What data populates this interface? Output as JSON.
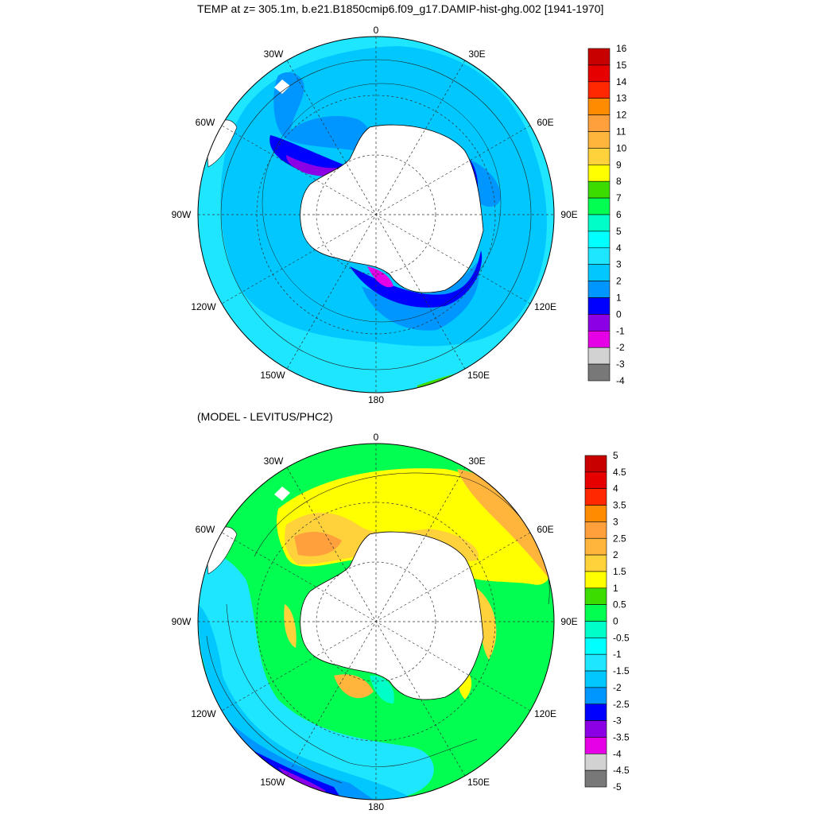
{
  "top_panel": {
    "title": "TEMP at z= 305.1m, b.e21.B1850cmip6.f09_g17.DAMIP-hist-ghg.002 [1941-1970]",
    "lon_labels": [
      "0",
      "30E",
      "60E",
      "90E",
      "120E",
      "150E",
      "180",
      "150W",
      "120W",
      "90W",
      "60W",
      "30W"
    ],
    "colorbar": {
      "labels": [
        "16",
        "15",
        "14",
        "13",
        "12",
        "11",
        "10",
        "9",
        "8",
        "7",
        "6",
        "5",
        "4",
        "3",
        "2",
        "1",
        "0",
        "-1",
        "-2",
        "-3",
        "-4"
      ],
      "colors": [
        "#c80000",
        "#e60000",
        "#ff2800",
        "#ff8c00",
        "#ffa03c",
        "#ffb43c",
        "#ffd23c",
        "#ffff00",
        "#3cdc00",
        "#00ff50",
        "#00ffc8",
        "#00ffff",
        "#1ee6ff",
        "#00c8ff",
        "#0096ff",
        "#0000ff",
        "#8c00e6",
        "#e600e6",
        "#d2d2d2",
        "#787878"
      ]
    }
  },
  "bottom_panel": {
    "title": "(MODEL - LEVITUS/PHC2)",
    "lon_labels": [
      "0",
      "30E",
      "60E",
      "90E",
      "120E",
      "150E",
      "180",
      "150W",
      "120W",
      "90W",
      "60W",
      "30W"
    ],
    "colorbar": {
      "labels": [
        "5",
        "4.5",
        "4",
        "3.5",
        "3",
        "2.5",
        "2",
        "1.5",
        "1",
        "0.5",
        "0",
        "-0.5",
        "-1",
        "-1.5",
        "-2",
        "-2.5",
        "-3",
        "-3.5",
        "-4",
        "-4.5",
        "-5"
      ],
      "colors": [
        "#c80000",
        "#e60000",
        "#ff2800",
        "#ff8c00",
        "#ffa03c",
        "#ffb43c",
        "#ffd23c",
        "#ffff00",
        "#3cdc00",
        "#00ff50",
        "#00ffc8",
        "#00ffff",
        "#1ee6ff",
        "#00c8ff",
        "#0096ff",
        "#0000ff",
        "#8c00e6",
        "#e600e6",
        "#d2d2d2",
        "#787878"
      ]
    }
  }
}
